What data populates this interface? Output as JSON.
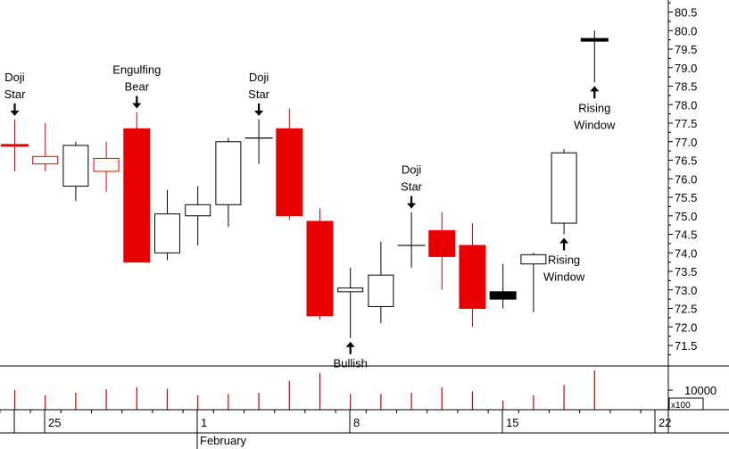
{
  "chart_data": {
    "type": "candlestick",
    "price_axis": {
      "min": 71.0,
      "max": 80.5,
      "ticks": [
        "71.5",
        "72.0",
        "72.5",
        "73.0",
        "73.5",
        "74.0",
        "74.5",
        "75.0",
        "75.5",
        "76.0",
        "76.5",
        "77.0",
        "77.5",
        "78.0",
        "78.5",
        "79.0",
        "79.5",
        "80.0",
        "80.5"
      ]
    },
    "volume_axis": {
      "label": "10000",
      "unit": "x100",
      "max": 16000
    },
    "date_ticks": [
      "25",
      "1",
      "8",
      "15",
      "22"
    ],
    "month_label": "February",
    "candles": [
      {
        "o": 76.9,
        "h": 77.6,
        "l": 76.2,
        "c": 76.9,
        "style": "doji-red",
        "vol": 7500
      },
      {
        "o": 76.6,
        "h": 77.5,
        "l": 76.2,
        "c": 76.4,
        "style": "outline-red",
        "vol": 5500
      },
      {
        "o": 75.8,
        "h": 77.0,
        "l": 75.4,
        "c": 76.9,
        "style": "hollow",
        "vol": 6500
      },
      {
        "o": 76.55,
        "h": 77.0,
        "l": 75.65,
        "c": 76.2,
        "style": "outline-red",
        "vol": 7800
      },
      {
        "o": 77.35,
        "h": 77.8,
        "l": 73.75,
        "c": 73.75,
        "style": "filled-red",
        "vol": 8500
      },
      {
        "o": 74.0,
        "h": 75.7,
        "l": 73.8,
        "c": 75.05,
        "style": "hollow",
        "vol": 8000
      },
      {
        "o": 75.0,
        "h": 75.8,
        "l": 74.2,
        "c": 75.3,
        "style": "hollow",
        "vol": 5500
      },
      {
        "o": 75.3,
        "h": 77.1,
        "l": 74.7,
        "c": 77.0,
        "style": "hollow",
        "vol": 6000
      },
      {
        "o": 77.1,
        "h": 77.6,
        "l": 76.4,
        "c": 77.1,
        "style": "doji-black",
        "vol": 6500
      },
      {
        "o": 77.35,
        "h": 77.9,
        "l": 74.9,
        "c": 75.0,
        "style": "filled-red",
        "vol": 11000
      },
      {
        "o": 74.85,
        "h": 75.2,
        "l": 72.2,
        "c": 72.3,
        "style": "filled-red",
        "vol": 14000
      },
      {
        "o": 72.95,
        "h": 73.6,
        "l": 71.7,
        "c": 73.05,
        "style": "hollow",
        "vol": 6000
      },
      {
        "o": 72.55,
        "h": 74.3,
        "l": 72.1,
        "c": 73.4,
        "style": "hollow",
        "vol": 6000
      },
      {
        "o": 74.2,
        "h": 75.1,
        "l": 73.6,
        "c": 74.2,
        "style": "doji-black",
        "vol": 6500
      },
      {
        "o": 74.6,
        "h": 75.1,
        "l": 73.0,
        "c": 73.9,
        "style": "filled-red",
        "vol": 8500
      },
      {
        "o": 74.2,
        "h": 74.8,
        "l": 72.0,
        "c": 72.5,
        "style": "filled-red",
        "vol": 7000
      },
      {
        "o": 72.95,
        "h": 73.7,
        "l": 72.5,
        "c": 72.75,
        "style": "filled-black",
        "vol": 3500
      },
      {
        "o": 73.7,
        "h": 74.0,
        "l": 72.4,
        "c": 73.95,
        "style": "hollow",
        "vol": 5500
      },
      {
        "o": 74.8,
        "h": 76.8,
        "l": 74.5,
        "c": 76.7,
        "style": "hollow",
        "vol": 9500
      },
      {
        "o": 79.75,
        "h": 80.0,
        "l": 78.6,
        "c": 79.75,
        "style": "doji-black",
        "vol": 15000
      }
    ],
    "annotations": [
      {
        "candle": 0,
        "position": "above",
        "lines": [
          "Doji",
          "Star"
        ]
      },
      {
        "candle": 4,
        "position": "above",
        "lines": [
          "Engulfing",
          "Bear"
        ]
      },
      {
        "candle": 8,
        "position": "above",
        "lines": [
          "Doji",
          "Star"
        ]
      },
      {
        "candle": 13,
        "position": "above",
        "lines": [
          "Doji",
          "Star"
        ]
      },
      {
        "candle": 11,
        "position": "below",
        "lines": [
          "Bullish"
        ]
      },
      {
        "candle": 18,
        "position": "below",
        "lines": [
          "Rising",
          "Window"
        ]
      },
      {
        "candle": 19,
        "position": "below",
        "lines": [
          "Rising",
          "Window"
        ]
      }
    ],
    "colors": {
      "bear": "#e60000",
      "bull": "#000000",
      "volume": "#cc0000"
    }
  }
}
